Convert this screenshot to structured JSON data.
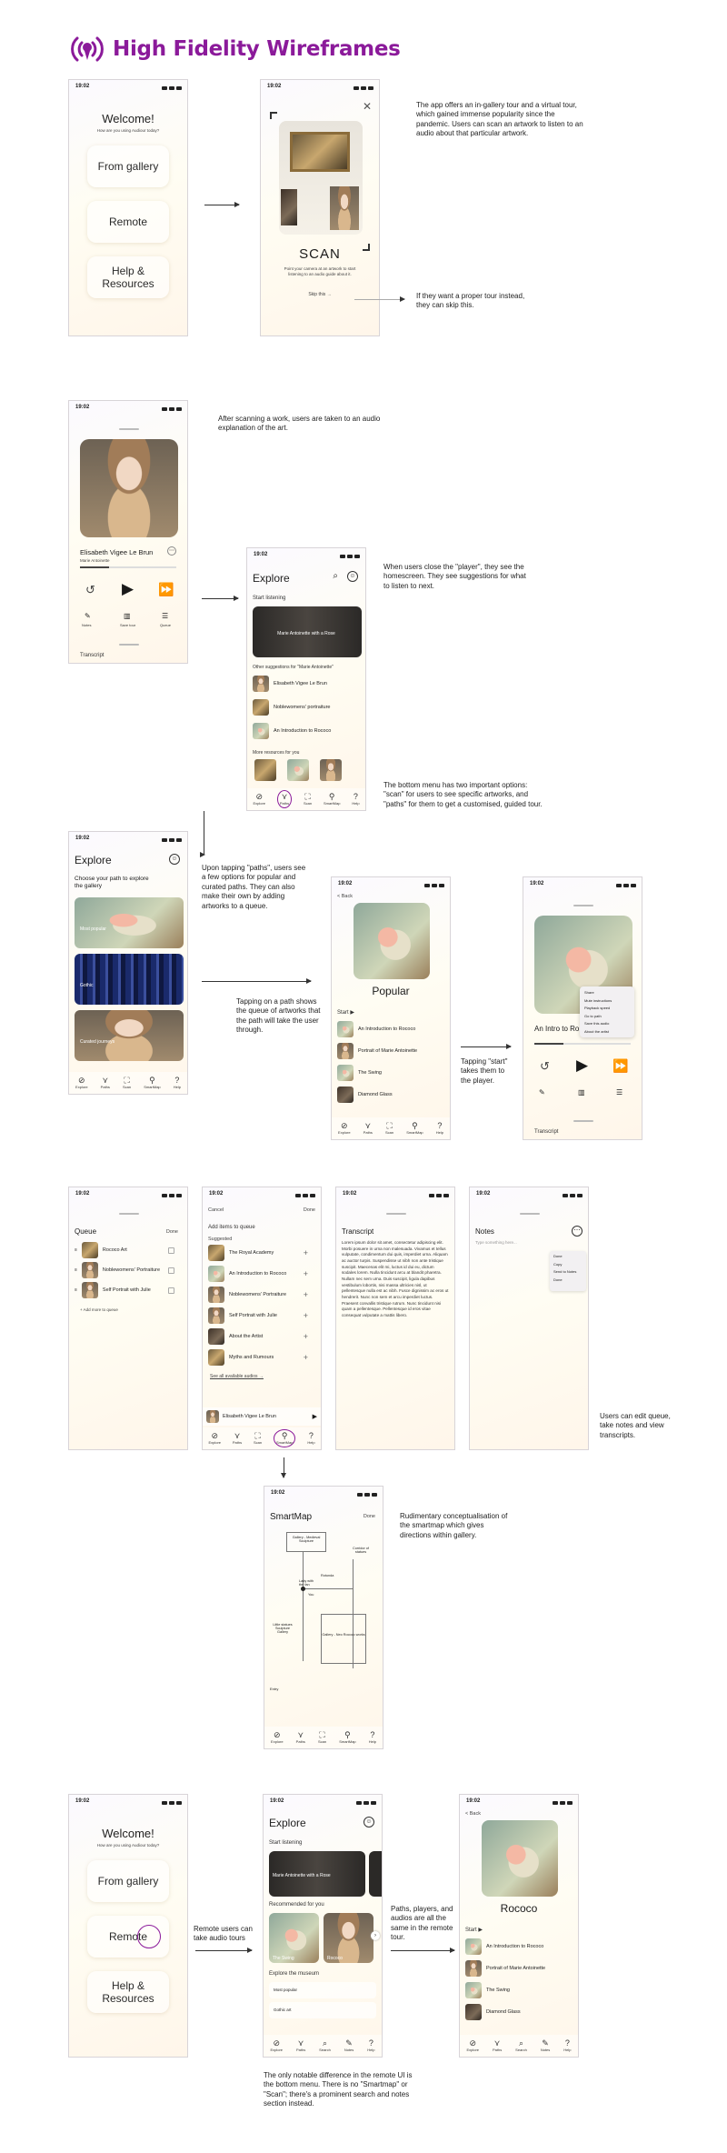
{
  "title": "High Fidelity Wireframes",
  "status_time": "19:02",
  "welcome": {
    "title": "Welcome!",
    "subtitle": "How are you using Audiour today?",
    "buttons": [
      "From gallery",
      "Remote",
      "Help & Resources"
    ]
  },
  "scan": {
    "title": "SCAN",
    "desc": "Point your camera at an artwork to start listening to an audio guide about it.",
    "skip": "Skip this →"
  },
  "notes": {
    "n1": "The app offers an in-gallery tour and a virtual tour, which gained immense popularity since the pandemic. Users can scan an artwork to listen to an audio about that particular artwork.",
    "n2": "If they want a proper tour instead, they can skip this.",
    "n3": "After scanning a work, users are taken to an audio explanation of the art.",
    "n4": "When users close the \"player\", they see the homescreen. They see suggestions for what to listen to next.",
    "n5": "The bottom menu has two important options: \"scan\" for users to see specific artworks, and \"paths\" for them to get a customised, guided tour.",
    "n6": "Upon tapping \"paths\", users see a few options for popular and curated paths. They can also make their own by adding artworks to a queue.",
    "n7": "Tapping on a path shows the queue of artworks that the path will take the user through.",
    "n8": "Tapping \"start\" takes them to the player.",
    "n9": "Users can edit queue, take notes and view transcripts.",
    "n10": "Rudimentary conceptualisation of the smartmap which gives directions within gallery.",
    "n11": "Remote users can take audio tours",
    "n12": "Paths, players, and audios are all the same in the remote tour.",
    "n13": "The only notable difference in the remote UI is the bottom menu. There is no \"Smartmap\" or \"Scan\"; there's a prominent search and notes section instead."
  },
  "player": {
    "title": "Elisabeth Vigee Le Brun",
    "artist": "Marie Antoinette",
    "actions": [
      "Notes",
      "Save tour",
      "Queue"
    ],
    "transcript": "Transcript"
  },
  "explore": {
    "title": "Explore",
    "start_listening": "Start listening",
    "featured": "Marie Antoinette with a Rose",
    "other": "Other suggestions for \"Marie Antoinette\"",
    "items": [
      "Elisabeth Vigee Le Brun",
      "Noblewomens' portraiture",
      "An Introduction to Rococo"
    ],
    "more": "More resources for you"
  },
  "nav": [
    "Explore",
    "Paths",
    "Scan",
    "SmartMap",
    "Help"
  ],
  "nav_remote": [
    "Explore",
    "Paths",
    "Search",
    "Notes",
    "Help"
  ],
  "paths": {
    "title": "Explore",
    "choose": "Choose your path to explore the gallery",
    "cards": [
      "Most popular",
      "Gothic",
      "Curated journeys"
    ]
  },
  "popular": {
    "back": "< Back",
    "title": "Popular",
    "start": "Start ▶",
    "items": [
      "An Introduction to Rococo",
      "Portrait of Marie Antoinette",
      "The Swing",
      "Diamond Glass"
    ]
  },
  "player2": {
    "title": "An Intro to Ro",
    "menu": [
      "Share",
      "Mute instructions",
      "Playback speed",
      "Go to path",
      "Save this audio",
      "About the artist"
    ]
  },
  "queue": {
    "title": "Queue",
    "done": "Done",
    "items": [
      "Rococo Art",
      "Noblewomens' Portraiture",
      "Self Portrait with Julie"
    ],
    "add": "+ Add more to queue"
  },
  "add_items": {
    "cancel": "Cancel",
    "done": "Done",
    "title": "Add items to queue",
    "suggested": "Suggested",
    "items": [
      "The Royal Academy",
      "An Introduction to Rococo",
      "Noblewomens' Portraiture",
      "Self Portrait with Julie",
      "About the Artist",
      "Myths and Rumours"
    ],
    "see_all": "See all available audios →",
    "mini": "Elisabeth Vigee Le Brun"
  },
  "transcript": {
    "title": "Transcript",
    "body": "Lorem ipsum dolor sit amet, consectetur adipiscing elit. Morbi posuere in urna non malesuada. Vivamus et tellus vulputate, condimentum dui quis, imperdiet urna. Aliquam ac auctor turpis. Suspendisse ut nibh non ante tristique suscipit. Maecenas elit mi, luctus id dui eu, dictum sodales lorem. Nulla tincidunt arcu at blandit pharetra. Nullam nec sem urna. Duis suscipit, ligula dapibus vestibulum lobortis, nisi massa ultricies nisl, ut pellentesque nulla est ac nibh. Fusce dignissim ac eros ut hendrerit. Nunc non sem et arcu imperdiet luctus. Praesent convallis tristique rutrum. Nunc tincidunt nisi quam a pellentesque. Pellentesque id eros vitae consequat vulputate a mattis libero."
  },
  "notes_screen": {
    "title": "Notes",
    "placeholder": "Type something here...",
    "menu": [
      "Done",
      "Copy",
      "Send to Notes",
      "Done"
    ]
  },
  "smartmap": {
    "title": "SmartMap",
    "done": "Done",
    "rooms": [
      "Gallery - Medieval Sculpture",
      "Corridor of statues",
      "Gallery - Neo Rococo works",
      "Lady with the fan",
      "Rotunda",
      "Little statues Sculpture Gallery",
      "You"
    ],
    "entry": "Entry"
  },
  "remote_explore": {
    "title": "Explore",
    "start_listening": "Start listening",
    "featured": "Marie Antoinette with a Rose",
    "recommended": "Recommended for you",
    "cards": [
      "The Swing",
      "Rococo"
    ],
    "museum": "Explore the museum",
    "options": [
      "Most popular",
      "Gothic art"
    ]
  },
  "rococo": {
    "back": "< Back",
    "title": "Rococo",
    "start": "Start ▶",
    "items": [
      "An Introduction to Rococo",
      "Portrait of Marie Antoinette",
      "The Swing",
      "Diamond Glass"
    ]
  }
}
